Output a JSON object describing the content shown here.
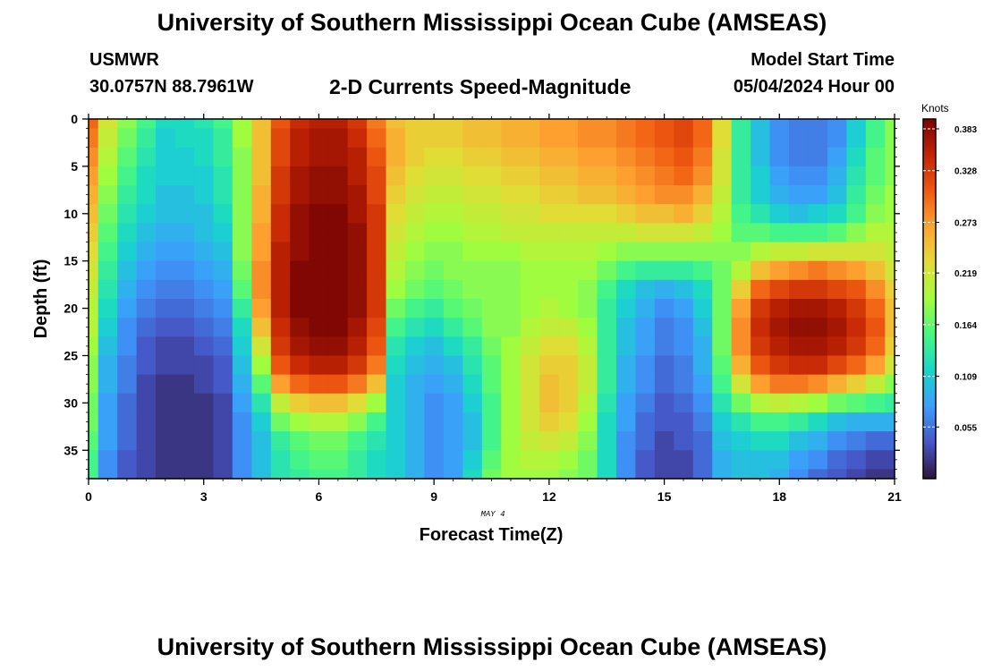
{
  "header": {
    "title": "University of Southern Mississippi Ocean Cube (AMSEAS)",
    "station": "USMWR",
    "coordinates": "30.0757N  88.7961W",
    "subtitle": "2-D Currents Speed-Magnitude",
    "model_start_label": "Model Start Time",
    "model_start_value": "05/04/2024 Hour 00"
  },
  "footer": {
    "title": "University of Southern Mississippi Ocean Cube (AMSEAS)"
  },
  "chart_data": {
    "type": "heatmap",
    "title": "2-D Currents Speed-Magnitude",
    "xlabel": "Forecast Time(Z)",
    "ylabel": "Depth (ft)",
    "date_annotation": "MAY 4",
    "xlim": [
      0,
      21
    ],
    "ylim": [
      38,
      0
    ],
    "x_ticks": [
      0,
      3,
      6,
      9,
      12,
      15,
      18,
      21
    ],
    "y_ticks": [
      0,
      5,
      10,
      15,
      20,
      25,
      30,
      35
    ],
    "colorbar": {
      "label": "Knots",
      "min": 0.0,
      "max": 0.383,
      "ticks": [
        "0.383",
        "0.328",
        "0.273",
        "0.219",
        "0.164",
        "0.109",
        "0.055"
      ],
      "tick_values": [
        0.383,
        0.328,
        0.273,
        0.219,
        0.164,
        0.109,
        0.055
      ]
    },
    "hours": [
      0,
      0.5,
      1,
      1.5,
      2,
      2.5,
      3,
      3.5,
      4,
      4.5,
      5,
      5.5,
      6,
      6.5,
      7,
      7.5,
      8,
      8.5,
      9,
      9.5,
      10,
      10.5,
      11,
      11.5,
      12,
      12.5,
      13,
      13.5,
      14,
      14.5,
      15,
      15.5,
      16,
      16.5,
      17,
      17.5,
      18,
      18.5,
      19,
      19.5,
      20,
      20.5,
      21
    ],
    "depths": [
      0,
      2,
      4,
      6,
      8,
      10,
      12,
      14,
      16,
      18,
      20,
      22,
      24,
      26,
      28,
      30,
      32,
      34,
      36,
      38
    ],
    "speed_profiles": [
      [
        0.3,
        0.29,
        0.28,
        0.27,
        0.26,
        0.25,
        0.24,
        0.23,
        0.22,
        0.21,
        0.2,
        0.2,
        0.19,
        0.18,
        0.18,
        0.17,
        0.17,
        0.16,
        0.15,
        0.15
      ],
      [
        0.22,
        0.21,
        0.2,
        0.19,
        0.18,
        0.17,
        0.16,
        0.15,
        0.14,
        0.13,
        0.12,
        0.11,
        0.1,
        0.09,
        0.09,
        0.08,
        0.08,
        0.08,
        0.07,
        0.07
      ],
      [
        0.18,
        0.17,
        0.16,
        0.15,
        0.14,
        0.13,
        0.12,
        0.11,
        0.1,
        0.09,
        0.08,
        0.07,
        0.07,
        0.06,
        0.06,
        0.05,
        0.05,
        0.05,
        0.04,
        0.04
      ],
      [
        0.15,
        0.14,
        0.13,
        0.12,
        0.12,
        0.11,
        0.1,
        0.09,
        0.08,
        0.07,
        0.06,
        0.05,
        0.04,
        0.04,
        0.03,
        0.03,
        0.03,
        0.03,
        0.03,
        0.03
      ],
      [
        0.12,
        0.11,
        0.11,
        0.11,
        0.1,
        0.1,
        0.09,
        0.08,
        0.07,
        0.06,
        0.05,
        0.04,
        0.03,
        0.03,
        0.02,
        0.02,
        0.02,
        0.02,
        0.02,
        0.02
      ],
      [
        0.12,
        0.12,
        0.11,
        0.11,
        0.1,
        0.1,
        0.09,
        0.08,
        0.07,
        0.06,
        0.05,
        0.04,
        0.03,
        0.03,
        0.02,
        0.02,
        0.02,
        0.02,
        0.02,
        0.02
      ],
      [
        0.13,
        0.12,
        0.12,
        0.11,
        0.11,
        0.1,
        0.1,
        0.09,
        0.08,
        0.07,
        0.06,
        0.05,
        0.04,
        0.03,
        0.03,
        0.02,
        0.02,
        0.02,
        0.02,
        0.02
      ],
      [
        0.15,
        0.14,
        0.14,
        0.13,
        0.13,
        0.12,
        0.11,
        0.1,
        0.09,
        0.08,
        0.07,
        0.06,
        0.05,
        0.04,
        0.04,
        0.03,
        0.03,
        0.03,
        0.03,
        0.03
      ],
      [
        0.19,
        0.19,
        0.18,
        0.18,
        0.18,
        0.18,
        0.18,
        0.18,
        0.17,
        0.16,
        0.14,
        0.12,
        0.11,
        0.1,
        0.09,
        0.08,
        0.07,
        0.07,
        0.07,
        0.07
      ],
      [
        0.25,
        0.25,
        0.25,
        0.25,
        0.26,
        0.26,
        0.27,
        0.27,
        0.28,
        0.28,
        0.27,
        0.25,
        0.22,
        0.19,
        0.16,
        0.13,
        0.11,
        0.1,
        0.1,
        0.1
      ],
      [
        0.31,
        0.32,
        0.32,
        0.33,
        0.33,
        0.34,
        0.34,
        0.35,
        0.35,
        0.35,
        0.35,
        0.34,
        0.33,
        0.31,
        0.27,
        0.21,
        0.17,
        0.14,
        0.13,
        0.13
      ],
      [
        0.34,
        0.35,
        0.35,
        0.36,
        0.36,
        0.37,
        0.37,
        0.37,
        0.38,
        0.38,
        0.38,
        0.37,
        0.36,
        0.34,
        0.3,
        0.24,
        0.19,
        0.16,
        0.15,
        0.14
      ],
      [
        0.35,
        0.36,
        0.36,
        0.37,
        0.37,
        0.38,
        0.38,
        0.38,
        0.38,
        0.38,
        0.38,
        0.38,
        0.37,
        0.35,
        0.31,
        0.25,
        0.2,
        0.17,
        0.16,
        0.15
      ],
      [
        0.35,
        0.36,
        0.36,
        0.37,
        0.37,
        0.38,
        0.38,
        0.38,
        0.38,
        0.38,
        0.38,
        0.38,
        0.37,
        0.35,
        0.31,
        0.25,
        0.2,
        0.17,
        0.16,
        0.15
      ],
      [
        0.33,
        0.34,
        0.35,
        0.35,
        0.36,
        0.36,
        0.37,
        0.37,
        0.37,
        0.37,
        0.37,
        0.36,
        0.35,
        0.33,
        0.29,
        0.23,
        0.18,
        0.15,
        0.14,
        0.14
      ],
      [
        0.29,
        0.3,
        0.31,
        0.32,
        0.32,
        0.33,
        0.33,
        0.33,
        0.33,
        0.33,
        0.33,
        0.32,
        0.31,
        0.29,
        0.25,
        0.19,
        0.15,
        0.13,
        0.12,
        0.12
      ],
      [
        0.25,
        0.26,
        0.26,
        0.25,
        0.24,
        0.23,
        0.22,
        0.21,
        0.2,
        0.19,
        0.17,
        0.15,
        0.13,
        0.12,
        0.11,
        0.11,
        0.11,
        0.11,
        0.11,
        0.11
      ],
      [
        0.24,
        0.24,
        0.24,
        0.23,
        0.22,
        0.21,
        0.2,
        0.19,
        0.18,
        0.17,
        0.15,
        0.13,
        0.11,
        0.1,
        0.09,
        0.09,
        0.09,
        0.09,
        0.09,
        0.09
      ],
      [
        0.24,
        0.24,
        0.23,
        0.22,
        0.21,
        0.2,
        0.19,
        0.18,
        0.17,
        0.16,
        0.14,
        0.12,
        0.1,
        0.09,
        0.08,
        0.07,
        0.07,
        0.07,
        0.07,
        0.07
      ],
      [
        0.24,
        0.24,
        0.23,
        0.22,
        0.21,
        0.2,
        0.19,
        0.18,
        0.18,
        0.17,
        0.16,
        0.14,
        0.12,
        0.1,
        0.09,
        0.08,
        0.08,
        0.08,
        0.08,
        0.08
      ],
      [
        0.25,
        0.25,
        0.24,
        0.23,
        0.22,
        0.21,
        0.2,
        0.19,
        0.18,
        0.18,
        0.17,
        0.16,
        0.14,
        0.13,
        0.12,
        0.11,
        0.1,
        0.1,
        0.11,
        0.12
      ],
      [
        0.25,
        0.25,
        0.24,
        0.23,
        0.22,
        0.21,
        0.2,
        0.19,
        0.18,
        0.18,
        0.18,
        0.18,
        0.17,
        0.16,
        0.16,
        0.15,
        0.15,
        0.15,
        0.16,
        0.17
      ],
      [
        0.26,
        0.26,
        0.25,
        0.24,
        0.23,
        0.22,
        0.21,
        0.19,
        0.18,
        0.18,
        0.18,
        0.18,
        0.19,
        0.19,
        0.19,
        0.19,
        0.19,
        0.19,
        0.19,
        0.19
      ],
      [
        0.26,
        0.26,
        0.25,
        0.24,
        0.23,
        0.22,
        0.21,
        0.2,
        0.19,
        0.19,
        0.19,
        0.2,
        0.21,
        0.22,
        0.22,
        0.22,
        0.22,
        0.21,
        0.2,
        0.19
      ],
      [
        0.27,
        0.27,
        0.26,
        0.25,
        0.24,
        0.23,
        0.21,
        0.2,
        0.19,
        0.19,
        0.2,
        0.21,
        0.23,
        0.24,
        0.25,
        0.25,
        0.24,
        0.22,
        0.2,
        0.19
      ],
      [
        0.27,
        0.27,
        0.26,
        0.25,
        0.24,
        0.23,
        0.21,
        0.2,
        0.19,
        0.19,
        0.19,
        0.21,
        0.23,
        0.24,
        0.24,
        0.24,
        0.23,
        0.21,
        0.19,
        0.18
      ],
      [
        0.28,
        0.28,
        0.27,
        0.26,
        0.25,
        0.23,
        0.21,
        0.2,
        0.19,
        0.18,
        0.18,
        0.19,
        0.2,
        0.21,
        0.21,
        0.2,
        0.19,
        0.18,
        0.17,
        0.17
      ],
      [
        0.28,
        0.28,
        0.27,
        0.26,
        0.25,
        0.23,
        0.21,
        0.19,
        0.17,
        0.15,
        0.14,
        0.14,
        0.14,
        0.14,
        0.14,
        0.13,
        0.12,
        0.12,
        0.12,
        0.12
      ],
      [
        0.29,
        0.29,
        0.28,
        0.27,
        0.26,
        0.24,
        0.21,
        0.18,
        0.15,
        0.12,
        0.11,
        0.1,
        0.1,
        0.09,
        0.09,
        0.08,
        0.08,
        0.07,
        0.07,
        0.07
      ],
      [
        0.3,
        0.3,
        0.29,
        0.28,
        0.27,
        0.25,
        0.22,
        0.18,
        0.14,
        0.1,
        0.09,
        0.08,
        0.08,
        0.07,
        0.07,
        0.06,
        0.05,
        0.05,
        0.04,
        0.04
      ],
      [
        0.31,
        0.31,
        0.3,
        0.29,
        0.28,
        0.25,
        0.22,
        0.18,
        0.14,
        0.09,
        0.07,
        0.06,
        0.06,
        0.05,
        0.05,
        0.04,
        0.04,
        0.03,
        0.03,
        0.03
      ],
      [
        0.32,
        0.32,
        0.31,
        0.3,
        0.28,
        0.26,
        0.22,
        0.18,
        0.14,
        0.1,
        0.08,
        0.07,
        0.07,
        0.06,
        0.06,
        0.05,
        0.04,
        0.04,
        0.03,
        0.03
      ],
      [
        0.3,
        0.3,
        0.29,
        0.28,
        0.26,
        0.24,
        0.21,
        0.18,
        0.15,
        0.12,
        0.11,
        0.1,
        0.09,
        0.09,
        0.08,
        0.07,
        0.06,
        0.05,
        0.05,
        0.05
      ],
      [
        0.23,
        0.23,
        0.22,
        0.22,
        0.21,
        0.2,
        0.19,
        0.18,
        0.17,
        0.17,
        0.17,
        0.17,
        0.17,
        0.16,
        0.15,
        0.13,
        0.11,
        0.1,
        0.09,
        0.09
      ],
      [
        0.14,
        0.14,
        0.14,
        0.14,
        0.14,
        0.15,
        0.16,
        0.18,
        0.2,
        0.24,
        0.27,
        0.28,
        0.28,
        0.26,
        0.22,
        0.17,
        0.13,
        0.11,
        0.1,
        0.1
      ],
      [
        0.1,
        0.1,
        0.1,
        0.11,
        0.11,
        0.13,
        0.16,
        0.2,
        0.25,
        0.3,
        0.33,
        0.34,
        0.33,
        0.31,
        0.27,
        0.2,
        0.15,
        0.12,
        0.1,
        0.1
      ],
      [
        0.07,
        0.07,
        0.07,
        0.08,
        0.09,
        0.11,
        0.15,
        0.21,
        0.27,
        0.32,
        0.35,
        0.36,
        0.35,
        0.33,
        0.29,
        0.21,
        0.15,
        0.12,
        0.1,
        0.09
      ],
      [
        0.06,
        0.06,
        0.06,
        0.07,
        0.08,
        0.1,
        0.15,
        0.21,
        0.28,
        0.33,
        0.36,
        0.37,
        0.36,
        0.34,
        0.29,
        0.2,
        0.14,
        0.1,
        0.08,
        0.07
      ],
      [
        0.06,
        0.06,
        0.06,
        0.07,
        0.08,
        0.11,
        0.15,
        0.22,
        0.29,
        0.33,
        0.36,
        0.37,
        0.36,
        0.34,
        0.28,
        0.19,
        0.12,
        0.09,
        0.07,
        0.05
      ],
      [
        0.07,
        0.07,
        0.08,
        0.09,
        0.1,
        0.12,
        0.16,
        0.22,
        0.28,
        0.32,
        0.35,
        0.36,
        0.35,
        0.32,
        0.26,
        0.17,
        0.1,
        0.07,
        0.05,
        0.04
      ],
      [
        0.11,
        0.11,
        0.12,
        0.13,
        0.14,
        0.15,
        0.18,
        0.22,
        0.27,
        0.31,
        0.33,
        0.34,
        0.33,
        0.3,
        0.24,
        0.16,
        0.09,
        0.06,
        0.04,
        0.03
      ],
      [
        0.15,
        0.15,
        0.16,
        0.16,
        0.17,
        0.18,
        0.2,
        0.22,
        0.25,
        0.28,
        0.3,
        0.31,
        0.3,
        0.27,
        0.21,
        0.15,
        0.09,
        0.05,
        0.03,
        0.02
      ],
      [
        0.18,
        0.18,
        0.18,
        0.18,
        0.19,
        0.19,
        0.2,
        0.21,
        0.22,
        0.24,
        0.25,
        0.25,
        0.24,
        0.22,
        0.18,
        0.14,
        0.09,
        0.05,
        0.03,
        0.02
      ]
    ]
  }
}
